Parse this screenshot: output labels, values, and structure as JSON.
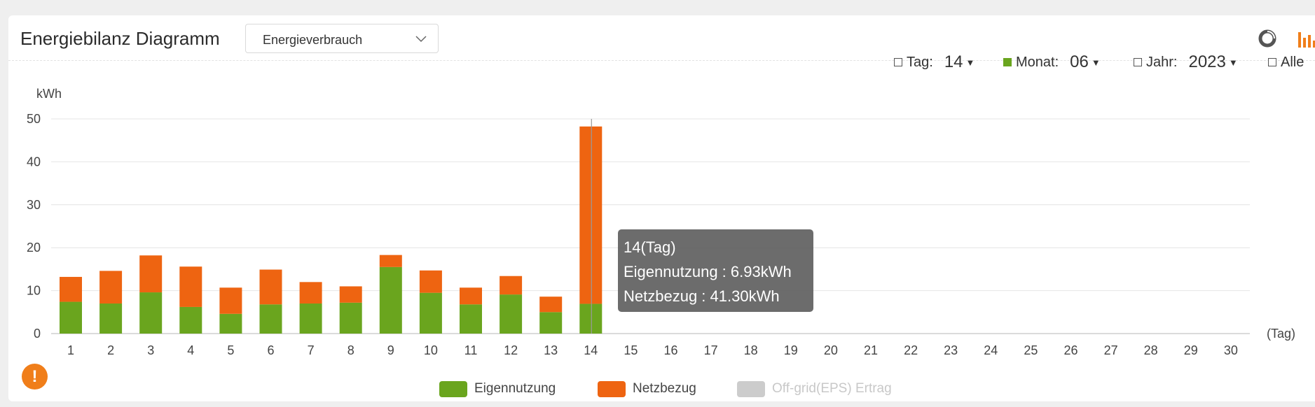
{
  "header": {
    "title": "Energiebilanz Diagramm",
    "dropdown_value": "Energieverbrauch",
    "icons": [
      "donut-chart-icon",
      "bar-chart-icon"
    ],
    "accent_color": "#f07e1a"
  },
  "filters": {
    "tag": {
      "label": "Tag:",
      "value": "14",
      "checked": false
    },
    "monat": {
      "label": "Monat:",
      "value": "06",
      "checked": true
    },
    "jahr": {
      "label": "Jahr:",
      "value": "2023",
      "checked": false
    },
    "alle": {
      "label": "Alle",
      "checked": false
    }
  },
  "tooltip": {
    "line1": "14(Tag)",
    "line2": "Eigennutzung : 6.93kWh",
    "line3": "Netzbezug : 41.30kWh"
  },
  "legend": [
    {
      "label": "Eigennutzung",
      "color": "#6aa51e"
    },
    {
      "label": "Netzbezug",
      "color": "#ee6411"
    },
    {
      "label": "Off-grid(EPS) Ertrag",
      "color": "#cccccc"
    }
  ],
  "chart_data": {
    "type": "bar",
    "stacked": true,
    "ylabel": "kWh",
    "xlabel": "(Tag)",
    "ylim": [
      0,
      50
    ],
    "yticks": [
      0,
      10,
      20,
      30,
      40,
      50
    ],
    "grid": true,
    "legend_position": "bottom",
    "categories": [
      "1",
      "2",
      "3",
      "4",
      "5",
      "6",
      "7",
      "8",
      "9",
      "10",
      "11",
      "12",
      "13",
      "14",
      "15",
      "16",
      "17",
      "18",
      "19",
      "20",
      "21",
      "22",
      "23",
      "24",
      "25",
      "26",
      "27",
      "28",
      "29",
      "30"
    ],
    "series": [
      {
        "name": "Eigennutzung",
        "color": "#6aa51e",
        "values": [
          7.4,
          7.0,
          9.6,
          6.2,
          4.6,
          6.8,
          7.0,
          7.2,
          15.5,
          9.5,
          6.8,
          9.1,
          5.0,
          6.93,
          0,
          0,
          0,
          0,
          0,
          0,
          0,
          0,
          0,
          0,
          0,
          0,
          0,
          0,
          0,
          0
        ]
      },
      {
        "name": "Netzbezug",
        "color": "#ee6411",
        "values": [
          5.8,
          7.6,
          8.6,
          9.4,
          6.1,
          8.1,
          5.0,
          3.8,
          2.8,
          5.2,
          3.9,
          4.3,
          3.6,
          41.3,
          0,
          0,
          0,
          0,
          0,
          0,
          0,
          0,
          0,
          0,
          0,
          0,
          0,
          0,
          0,
          0
        ]
      },
      {
        "name": "Off-grid(EPS) Ertrag",
        "color": "#cccccc",
        "values": [
          0,
          0,
          0,
          0,
          0,
          0,
          0,
          0,
          0,
          0,
          0,
          0,
          0,
          0,
          0,
          0,
          0,
          0,
          0,
          0,
          0,
          0,
          0,
          0,
          0,
          0,
          0,
          0,
          0,
          0
        ]
      }
    ],
    "highlighted_category": "14"
  }
}
